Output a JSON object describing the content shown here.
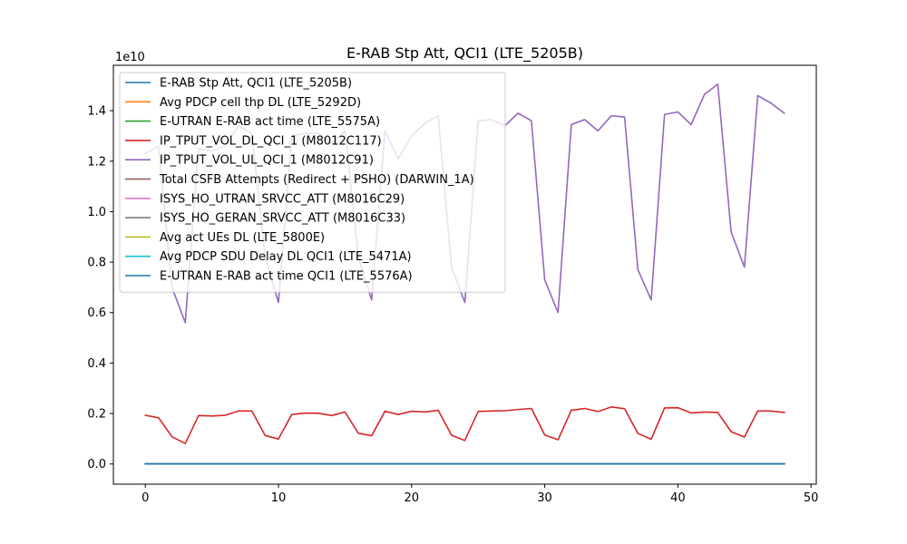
{
  "chart_data": {
    "type": "line",
    "title": "E-RAB Stp Att, QCI1 (LTE_5205B)",
    "xlabel": "",
    "ylabel": "",
    "y_scale_label": "1e10",
    "xlim": [
      -2.4,
      50.4
    ],
    "ylim": [
      -0.08,
      1.58
    ],
    "x_ticks": [
      0,
      10,
      20,
      30,
      40,
      50
    ],
    "x_tick_labels": [
      "0",
      "10",
      "20",
      "30",
      "40",
      "50"
    ],
    "y_ticks": [
      0.0,
      0.2,
      0.4,
      0.6,
      0.8,
      1.0,
      1.2,
      1.4
    ],
    "y_tick_labels": [
      "0.0",
      "0.2",
      "0.4",
      "0.6",
      "0.8",
      "1.0",
      "1.2",
      "1.4"
    ],
    "grid": false,
    "legend_position": "upper-left",
    "x": [
      0,
      1,
      2,
      3,
      4,
      5,
      6,
      7,
      8,
      9,
      10,
      11,
      12,
      13,
      14,
      15,
      16,
      17,
      18,
      19,
      20,
      21,
      22,
      23,
      24,
      25,
      26,
      27,
      28,
      29,
      30,
      31,
      32,
      33,
      34,
      35,
      36,
      37,
      38,
      39,
      40,
      41,
      42,
      43,
      44,
      45,
      46,
      47,
      48
    ],
    "series": [
      {
        "name": "E-RAB Stp Att, QCI1 (LTE_5205B)",
        "color": "#1f77b4",
        "values": [
          0,
          0,
          0,
          0,
          0,
          0,
          0,
          0,
          0,
          0,
          0,
          0,
          0,
          0,
          0,
          0,
          0,
          0,
          0,
          0,
          0,
          0,
          0,
          0,
          0,
          0,
          0,
          0,
          0,
          0,
          0,
          0,
          0,
          0,
          0,
          0,
          0,
          0,
          0,
          0,
          0,
          0,
          0,
          0,
          0,
          0,
          0,
          0,
          0
        ]
      },
      {
        "name": "Avg PDCP cell thp DL (LTE_5292D)",
        "color": "#ff7f0e",
        "values": [
          0,
          0,
          0,
          0,
          0,
          0,
          0,
          0,
          0,
          0,
          0,
          0,
          0,
          0,
          0,
          0,
          0,
          0,
          0,
          0,
          0,
          0,
          0,
          0,
          0,
          0,
          0,
          0,
          0,
          0,
          0,
          0,
          0,
          0,
          0,
          0,
          0,
          0,
          0,
          0,
          0,
          0,
          0,
          0,
          0,
          0,
          0,
          0,
          0
        ]
      },
      {
        "name": "E-UTRAN E-RAB act time (LTE_5575A)",
        "color": "#2ca02c",
        "values": [
          0,
          0,
          0,
          0,
          0,
          0,
          0,
          0,
          0,
          0,
          0,
          0,
          0,
          0,
          0,
          0,
          0,
          0,
          0,
          0,
          0,
          0,
          0,
          0,
          0,
          0,
          0,
          0,
          0,
          0,
          0,
          0,
          0,
          0,
          0,
          0,
          0,
          0,
          0,
          0,
          0,
          0,
          0,
          0,
          0,
          0,
          0,
          0,
          0
        ]
      },
      {
        "name": "IP_TPUT_VOL_DL_QCI_1 (M8012C117)",
        "color": "#d62728",
        "values": [
          0.193,
          0.183,
          0.108,
          0.081,
          0.192,
          0.19,
          0.193,
          0.21,
          0.21,
          0.113,
          0.099,
          0.196,
          0.202,
          0.201,
          0.192,
          0.206,
          0.122,
          0.112,
          0.209,
          0.196,
          0.209,
          0.206,
          0.213,
          0.114,
          0.093,
          0.208,
          0.21,
          0.211,
          0.216,
          0.22,
          0.115,
          0.096,
          0.213,
          0.22,
          0.208,
          0.226,
          0.219,
          0.121,
          0.098,
          0.222,
          0.223,
          0.202,
          0.206,
          0.204,
          0.128,
          0.107,
          0.21,
          0.21,
          0.204
        ]
      },
      {
        "name": "IP_TPUT_VOL_UL_QCI_1 (M8012C91)",
        "color": "#9467bd",
        "values": [
          1.23,
          1.26,
          0.7,
          0.56,
          1.25,
          1.24,
          1.26,
          1.34,
          1.31,
          0.82,
          0.64,
          1.3,
          1.31,
          1.31,
          1.27,
          1.32,
          0.82,
          0.65,
          1.32,
          1.21,
          1.3,
          1.35,
          1.38,
          0.78,
          0.64,
          1.36,
          1.365,
          1.34,
          1.39,
          1.36,
          0.73,
          0.6,
          1.345,
          1.365,
          1.32,
          1.38,
          1.375,
          0.77,
          0.65,
          1.385,
          1.395,
          1.345,
          1.465,
          1.505,
          0.92,
          0.78,
          1.46,
          1.43,
          1.39
        ]
      },
      {
        "name": "Total CSFB Attempts (Redirect + PSHO) (DARWIN_1A)",
        "color": "#8c564b",
        "values": [
          0,
          0,
          0,
          0,
          0,
          0,
          0,
          0,
          0,
          0,
          0,
          0,
          0,
          0,
          0,
          0,
          0,
          0,
          0,
          0,
          0,
          0,
          0,
          0,
          0,
          0,
          0,
          0,
          0,
          0,
          0,
          0,
          0,
          0,
          0,
          0,
          0,
          0,
          0,
          0,
          0,
          0,
          0,
          0,
          0,
          0,
          0,
          0,
          0
        ]
      },
      {
        "name": "ISYS_HO_UTRAN_SRVCC_ATT (M8016C29)",
        "color": "#e377c2",
        "values": [
          0,
          0,
          0,
          0,
          0,
          0,
          0,
          0,
          0,
          0,
          0,
          0,
          0,
          0,
          0,
          0,
          0,
          0,
          0,
          0,
          0,
          0,
          0,
          0,
          0,
          0,
          0,
          0,
          0,
          0,
          0,
          0,
          0,
          0,
          0,
          0,
          0,
          0,
          0,
          0,
          0,
          0,
          0,
          0,
          0,
          0,
          0,
          0,
          0
        ]
      },
      {
        "name": "ISYS_HO_GERAN_SRVCC_ATT (M8016C33)",
        "color": "#7f7f7f",
        "values": [
          0,
          0,
          0,
          0,
          0,
          0,
          0,
          0,
          0,
          0,
          0,
          0,
          0,
          0,
          0,
          0,
          0,
          0,
          0,
          0,
          0,
          0,
          0,
          0,
          0,
          0,
          0,
          0,
          0,
          0,
          0,
          0,
          0,
          0,
          0,
          0,
          0,
          0,
          0,
          0,
          0,
          0,
          0,
          0,
          0,
          0,
          0,
          0,
          0
        ]
      },
      {
        "name": "Avg act UEs DL (LTE_5800E)",
        "color": "#bcbd22",
        "values": [
          0,
          0,
          0,
          0,
          0,
          0,
          0,
          0,
          0,
          0,
          0,
          0,
          0,
          0,
          0,
          0,
          0,
          0,
          0,
          0,
          0,
          0,
          0,
          0,
          0,
          0,
          0,
          0,
          0,
          0,
          0,
          0,
          0,
          0,
          0,
          0,
          0,
          0,
          0,
          0,
          0,
          0,
          0,
          0,
          0,
          0,
          0,
          0,
          0
        ]
      },
      {
        "name": "Avg PDCP SDU Delay DL QCI1 (LTE_5471A)",
        "color": "#17becf",
        "values": [
          0,
          0,
          0,
          0,
          0,
          0,
          0,
          0,
          0,
          0,
          0,
          0,
          0,
          0,
          0,
          0,
          0,
          0,
          0,
          0,
          0,
          0,
          0,
          0,
          0,
          0,
          0,
          0,
          0,
          0,
          0,
          0,
          0,
          0,
          0,
          0,
          0,
          0,
          0,
          0,
          0,
          0,
          0,
          0,
          0,
          0,
          0,
          0,
          0
        ]
      },
      {
        "name": "E-UTRAN E-RAB act time QCI1 (LTE_5576A)",
        "color": "#1f77b4",
        "values": [
          0,
          0,
          0,
          0,
          0,
          0,
          0,
          0,
          0,
          0,
          0,
          0,
          0,
          0,
          0,
          0,
          0,
          0,
          0,
          0,
          0,
          0,
          0,
          0,
          0,
          0,
          0,
          0,
          0,
          0,
          0,
          0,
          0,
          0,
          0,
          0,
          0,
          0,
          0,
          0,
          0,
          0,
          0,
          0,
          0,
          0,
          0,
          0,
          0
        ]
      }
    ]
  }
}
